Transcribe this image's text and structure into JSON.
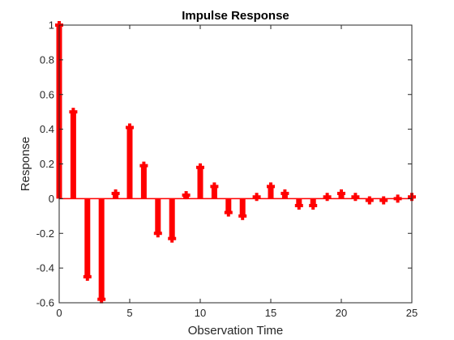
{
  "chart_data": {
    "type": "stem",
    "title": "Impulse Response",
    "xlabel": "Observation Time",
    "ylabel": "Response",
    "xlim": [
      0,
      25
    ],
    "ylim": [
      -0.6,
      1
    ],
    "xticks": [
      "0",
      "5",
      "10",
      "15",
      "20",
      "25"
    ],
    "yticks": [
      "-0.6",
      "-0.4",
      "-0.2",
      "0",
      "0.2",
      "0.4",
      "0.6",
      "0.8",
      "1"
    ],
    "grid": false,
    "series": [
      {
        "color": "#ff0000",
        "marker": "plus",
        "x": [
          0,
          1,
          2,
          3,
          4,
          5,
          6,
          7,
          8,
          9,
          10,
          11,
          12,
          13,
          14,
          15,
          16,
          17,
          18,
          19,
          20,
          21,
          22,
          23,
          24,
          25
        ],
        "values": [
          1.0,
          0.5,
          -0.45,
          -0.58,
          0.03,
          0.41,
          0.19,
          -0.2,
          -0.23,
          0.02,
          0.18,
          0.07,
          -0.08,
          -0.1,
          0.01,
          0.07,
          0.03,
          -0.04,
          -0.04,
          0.01,
          0.03,
          0.01,
          -0.01,
          -0.01,
          0.0,
          0.01
        ]
      }
    ]
  }
}
